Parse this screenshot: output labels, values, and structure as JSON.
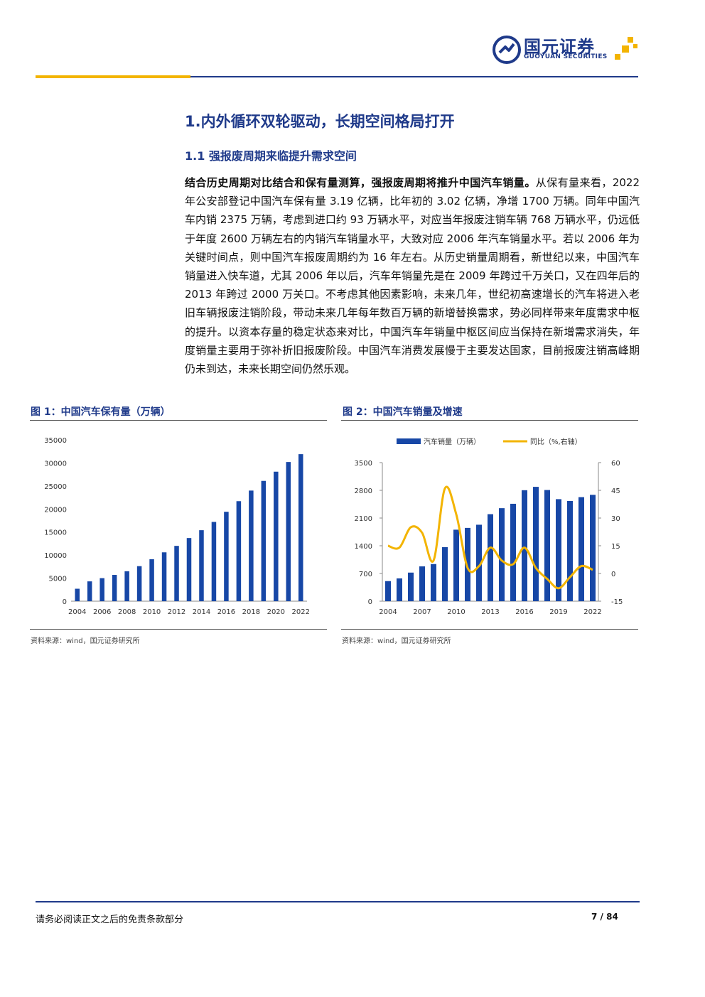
{
  "brand": {
    "name_cn": "国元证券",
    "name_en": "GUOYUAN SECURITIES"
  },
  "section": {
    "h1": "1.内外循环双轮驱动，长期空间格局打开",
    "h2": "1.1 强报废周期来临提升需求空间"
  },
  "paragraph": {
    "lead": "结合历史周期对比结合和保有量测算，强报废周期将推升中国汽车销量。",
    "body": "从保有量来看，2022 年公安部登记中国汽车保有量 3.19 亿辆，比年初的 3.02 亿辆，净增 1700 万辆。同年中国汽车内销 2375 万辆，考虑到进口约 93 万辆水平，对应当年报废注销车辆 768 万辆水平，仍远低于年度 2600 万辆左右的内销汽车销量水平，大致对应 2006 年汽车销量水平。若以 2006 年为关键时间点，则中国汽车报废周期约为 16 年左右。从历史销量周期看，新世纪以来，中国汽车销量进入快车道，尤其 2006 年以后，汽车年销量先是在 2009 年跨过千万关口，又在四年后的 2013 年跨过 2000 万关口。不考虑其他因素影响，未来几年，世纪初高速增长的汽车将进入老旧车辆报废注销阶段，带动未来几年每年数百万辆的新增替换需求，势必同样带来年度需求中枢的提升。以资本存量的稳定状态来对比，中国汽车年销量中枢区间应当保持在新增需求消失，年度销量主要用于弥补折旧报废阶段。中国汽车消费发展慢于主要发达国家，目前报废注销高峰期仍未到达，未来长期空间仍然乐观。"
  },
  "figures": {
    "fig1_title": "图 1：中国汽车保有量（万辆）",
    "fig2_title": "图 2：中国汽车销量及增速",
    "source1": "资料来源：wind，国元证券研究所",
    "source2": "资料来源：wind，国元证券研究所"
  },
  "footer": {
    "disclaimer": "请务必阅读正文之后的免责条款部分",
    "page": "7 / 84"
  },
  "colors": {
    "brand_blue": "#1f3a8a",
    "bar_blue": "#1747a6",
    "gold": "#f3b400"
  },
  "chart_data": [
    {
      "type": "bar",
      "title": "图 1：中国汽车保有量（万辆）",
      "x": [
        2004,
        2005,
        2006,
        2007,
        2008,
        2009,
        2010,
        2011,
        2012,
        2013,
        2014,
        2015,
        2016,
        2017,
        2018,
        2019,
        2020,
        2021,
        2022
      ],
      "x_tick_labels": [
        "2004",
        "2006",
        "2008",
        "2010",
        "2012",
        "2014",
        "2016",
        "2018",
        "2020",
        "2022"
      ],
      "values": [
        2700,
        4300,
        5000,
        5700,
        6500,
        7600,
        9100,
        10600,
        12000,
        13700,
        15400,
        17200,
        19400,
        21700,
        24000,
        26100,
        28100,
        30200,
        31900
      ],
      "ylim": [
        0,
        35000
      ],
      "y_ticks": [
        0,
        5000,
        10000,
        15000,
        20000,
        25000,
        30000,
        35000
      ],
      "legend": "none",
      "grid": false
    },
    {
      "type": "bar",
      "title": "图 2：中国汽车销量及增速",
      "x": [
        2004,
        2005,
        2006,
        2007,
        2008,
        2009,
        2010,
        2011,
        2012,
        2013,
        2014,
        2015,
        2016,
        2017,
        2018,
        2019,
        2020,
        2021,
        2022
      ],
      "x_tick_labels": [
        "2004",
        "2007",
        "2010",
        "2013",
        "2016",
        "2019",
        "2022"
      ],
      "series": [
        {
          "name": "汽车销量（万辆）",
          "type": "bar",
          "axis": "left",
          "values": [
            507,
            576,
            722,
            879,
            938,
            1364,
            1806,
            1851,
            1931,
            2198,
            2349,
            2460,
            2803,
            2888,
            2808,
            2577,
            2531,
            2628,
            2686
          ]
        },
        {
          "name": "同比（%,右轴）",
          "type": "line",
          "axis": "right",
          "values": [
            15,
            14,
            25,
            22,
            7,
            46,
            32,
            3,
            4,
            14,
            7,
            5,
            14,
            3,
            -3,
            -8,
            -2,
            4,
            2
          ]
        }
      ],
      "ylim": [
        0,
        3500
      ],
      "y_ticks": [
        0,
        700,
        1400,
        2100,
        2800,
        3500
      ],
      "y2lim": [
        -15,
        60
      ],
      "y2_ticks": [
        -15,
        0,
        15,
        30,
        45,
        60
      ],
      "legend": "top",
      "grid": false
    }
  ]
}
